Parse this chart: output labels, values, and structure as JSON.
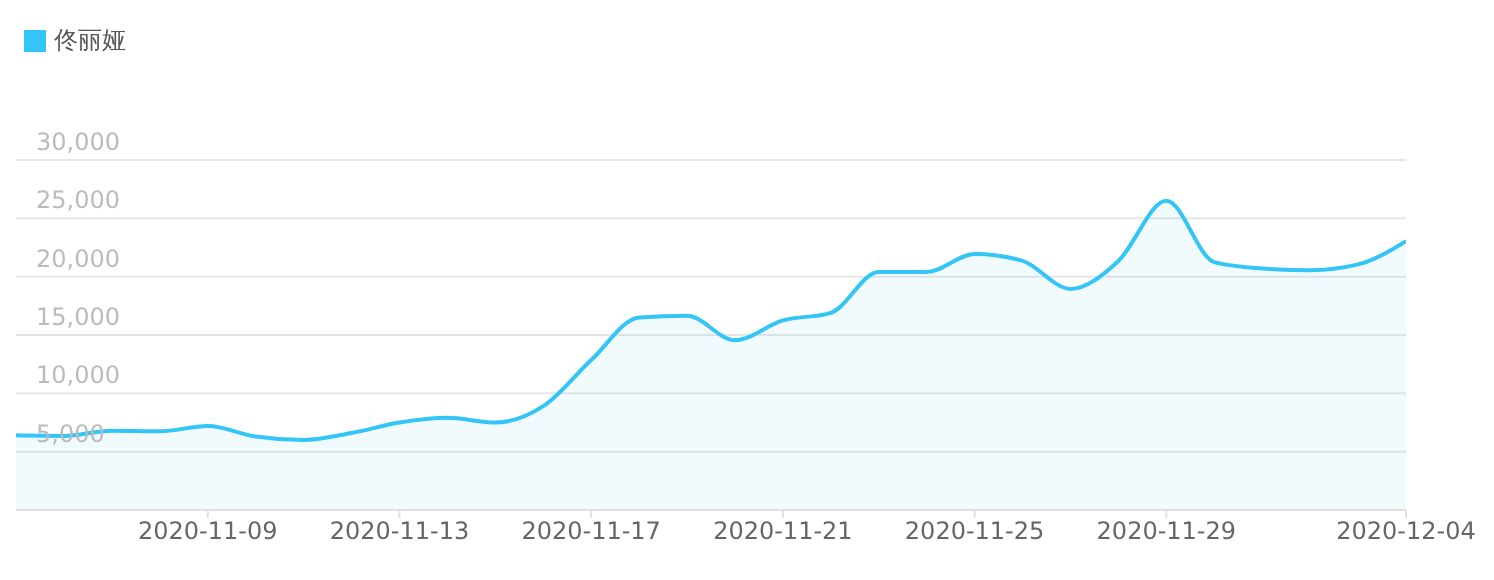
{
  "chart_data": {
    "type": "area",
    "x": [
      "2020-11-05",
      "2020-11-06",
      "2020-11-07",
      "2020-11-08",
      "2020-11-09",
      "2020-11-10",
      "2020-11-11",
      "2020-11-12",
      "2020-11-13",
      "2020-11-14",
      "2020-11-15",
      "2020-11-16",
      "2020-11-17",
      "2020-11-18",
      "2020-11-19",
      "2020-11-20",
      "2020-11-21",
      "2020-11-22",
      "2020-11-23",
      "2020-11-24",
      "2020-11-25",
      "2020-11-26",
      "2020-11-27",
      "2020-11-28",
      "2020-11-29",
      "2020-11-30",
      "2020-12-01",
      "2020-12-02",
      "2020-12-03",
      "2020-12-04"
    ],
    "series": [
      {
        "name": "佟丽娅",
        "color": "#33c5f5",
        "values": [
          6400,
          6350,
          6800,
          6750,
          7200,
          6300,
          6000,
          6600,
          7500,
          7900,
          7500,
          8900,
          12850,
          16500,
          16650,
          14550,
          16250,
          16900,
          20400,
          20400,
          21950,
          21350,
          18950,
          21350,
          26500,
          21250,
          20700,
          20550,
          21050,
          23050
        ]
      }
    ],
    "xlim": [
      "2020-11-05",
      "2020-12-04"
    ],
    "xticks": [
      "2020-11-09",
      "2020-11-13",
      "2020-11-17",
      "2020-11-21",
      "2020-11-25",
      "2020-11-29",
      "2020-12-04"
    ],
    "ylim": [
      0,
      30000
    ],
    "yticks": [
      {
        "value": 5000,
        "label": "5,000"
      },
      {
        "value": 10000,
        "label": "10,000"
      },
      {
        "value": 15000,
        "label": "15,000"
      },
      {
        "value": 20000,
        "label": "20,000"
      },
      {
        "value": 25000,
        "label": "25,000"
      },
      {
        "value": 30000,
        "label": "30,000"
      }
    ],
    "grid": "y",
    "legend": "top left"
  }
}
